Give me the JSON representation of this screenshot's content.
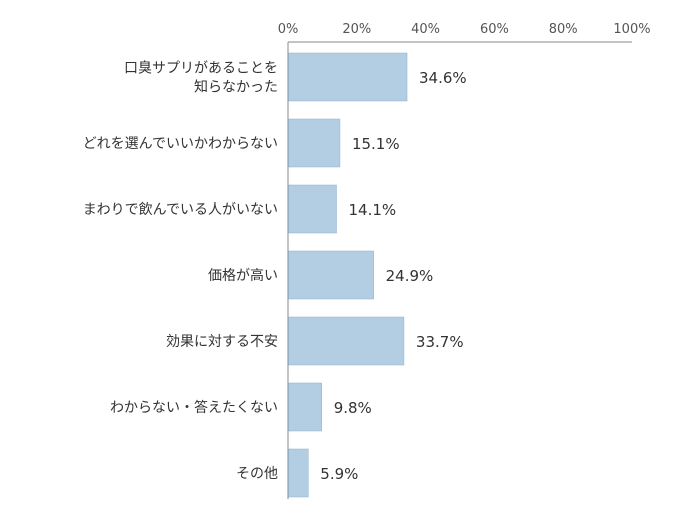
{
  "chart_data": {
    "type": "bar",
    "orientation": "horizontal",
    "xlim": [
      0,
      100
    ],
    "grid": false,
    "ticks": [
      "0%",
      "20%",
      "40%",
      "60%",
      "80%",
      "100%"
    ],
    "categories": [
      [
        "口臭サプリがあることを",
        "知らなかった"
      ],
      [
        "どれを選んでいいかわからない"
      ],
      [
        "まわりで飲んでいる人がいない"
      ],
      [
        "価格が高い"
      ],
      [
        "効果に対する不安"
      ],
      [
        "わからない・答えたくない"
      ],
      [
        "その他"
      ]
    ],
    "values": [
      34.6,
      15.1,
      14.1,
      24.9,
      33.7,
      9.8,
      5.9
    ],
    "value_labels": [
      "34.6%",
      "15.1%",
      "14.1%",
      "24.9%",
      "33.7%",
      "9.8%",
      "5.9%"
    ],
    "bar_color": "#b3cde3",
    "bar_border_color": "#8fb1cf",
    "axis_color": "#888888"
  }
}
